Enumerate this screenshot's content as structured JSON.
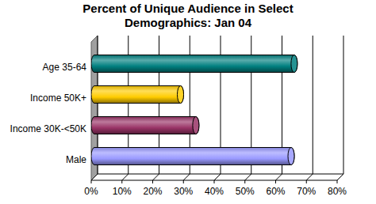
{
  "chart_data": {
    "type": "bar",
    "title": "Percent of Unique Audience in Select Demographics: Jan 04",
    "orientation": "horizontal",
    "categories": [
      "Age 35-64",
      "Income 50K+",
      "Income 30K-<50K",
      "Male"
    ],
    "values": [
      65,
      28,
      33,
      64
    ],
    "colors": [
      "#008080",
      "#ffcc00",
      "#993366",
      "#9999ff"
    ],
    "xlim": [
      0,
      80
    ],
    "xticks": [
      {
        "value": 0,
        "label": "0%"
      },
      {
        "value": 10,
        "label": "10%"
      },
      {
        "value": 20,
        "label": "20%"
      },
      {
        "value": 30,
        "label": "30%"
      },
      {
        "value": 40,
        "label": "40%"
      },
      {
        "value": 50,
        "label": "50%"
      },
      {
        "value": 60,
        "label": "60%"
      },
      {
        "value": 70,
        "label": "70%"
      },
      {
        "value": 80,
        "label": "80%"
      }
    ],
    "grid": true,
    "data_labels": false
  }
}
